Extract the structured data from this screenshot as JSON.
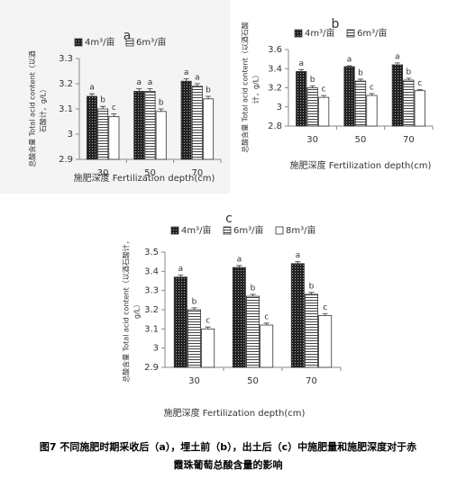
{
  "chart_data": [
    {
      "type": "bar",
      "title": "a",
      "categories": [
        "30",
        "50",
        "70"
      ],
      "ylim": [
        2.9,
        3.3
      ],
      "yticks": [
        2.9,
        3,
        3.1,
        3.2,
        3.3
      ],
      "xlabel": "施肥深度 Fertilization depth(cm)",
      "ylabel": [
        "总酸含量 Total acid content（以酒",
        "石酸计，g/L）"
      ],
      "series": [
        {
          "name": "4m³/亩",
          "pattern": "dots",
          "color": "#333333",
          "values": [
            3.15,
            3.17,
            3.21
          ],
          "errors": [
            0.01,
            0.01,
            0.01
          ],
          "letters": [
            "a",
            "a",
            "a"
          ]
        },
        {
          "name": "6m³/亩",
          "pattern": "hlines",
          "color": "#444444",
          "values": [
            3.1,
            3.17,
            3.19
          ],
          "errors": [
            0.01,
            0.01,
            0.01
          ],
          "letters": [
            "b",
            "a",
            "a"
          ]
        },
        {
          "pattern": "none",
          "color": "#ffffff",
          "values": [
            3.07,
            3.09,
            3.14
          ],
          "errors": [
            0.01,
            0.01,
            0.01
          ],
          "letters": [
            "c",
            "b",
            "b"
          ]
        }
      ]
    },
    {
      "type": "bar",
      "title": "b",
      "categories": [
        "30",
        "50",
        "70"
      ],
      "ylim": [
        2.8,
        3.6
      ],
      "yticks": [
        2.8,
        3,
        3.2,
        3.4,
        3.6
      ],
      "xlabel": "施肥深度 Fertilization depth(cm)",
      "ylabel": [
        "总酸含量 Total acid content（以酒石酸",
        "计，g/L）"
      ],
      "series": [
        {
          "name": "4m³/亩",
          "pattern": "dots",
          "color": "#333333",
          "values": [
            3.37,
            3.42,
            3.44
          ],
          "errors": [
            0.02,
            0.01,
            0.02
          ],
          "letters": [
            "a",
            "a",
            "a"
          ]
        },
        {
          "name": "6m³/亩",
          "pattern": "hlines",
          "color": "#444444",
          "values": [
            3.2,
            3.27,
            3.28
          ],
          "errors": [
            0.02,
            0.02,
            0.02
          ],
          "letters": [
            "b",
            "b",
            "b"
          ]
        },
        {
          "pattern": "none",
          "color": "#ffffff",
          "values": [
            3.1,
            3.12,
            3.17
          ],
          "errors": [
            0.02,
            0.02,
            0.01
          ],
          "letters": [
            "c",
            "c",
            "c"
          ]
        }
      ]
    },
    {
      "type": "bar",
      "title": "c",
      "categories": [
        "30",
        "50",
        "70"
      ],
      "ylim": [
        2.9,
        3.5
      ],
      "yticks": [
        2.9,
        3,
        3.1,
        3.2,
        3.3,
        3.4,
        3.5
      ],
      "xlabel": "施肥深度 Fertilization depth(cm)",
      "ylabel": [
        "总酸含量 Total acid content（以酒石酸计，",
        "g/L）"
      ],
      "series": [
        {
          "name": "4m³/亩",
          "pattern": "dots",
          "color": "#333333",
          "values": [
            3.37,
            3.42,
            3.44
          ],
          "errors": [
            0.01,
            0.01,
            0.01
          ],
          "letters": [
            "a",
            "a",
            "a"
          ]
        },
        {
          "name": "6m³/亩",
          "pattern": "hlines",
          "color": "#444444",
          "values": [
            3.2,
            3.27,
            3.28
          ],
          "errors": [
            0.01,
            0.01,
            0.01
          ],
          "letters": [
            "b",
            "b",
            "b"
          ]
        },
        {
          "name": "8m³/亩",
          "pattern": "none",
          "color": "#ffffff",
          "values": [
            3.1,
            3.12,
            3.17
          ],
          "errors": [
            0.01,
            0.01,
            0.01
          ],
          "letters": [
            "c",
            "c",
            "c"
          ]
        }
      ]
    }
  ],
  "caption": [
    "图7 不同施肥时期采收后（a），埋土前（b），出土后（c）中施肥量和施肥深度对于赤",
    "霞珠葡萄总酸含量的影响"
  ]
}
